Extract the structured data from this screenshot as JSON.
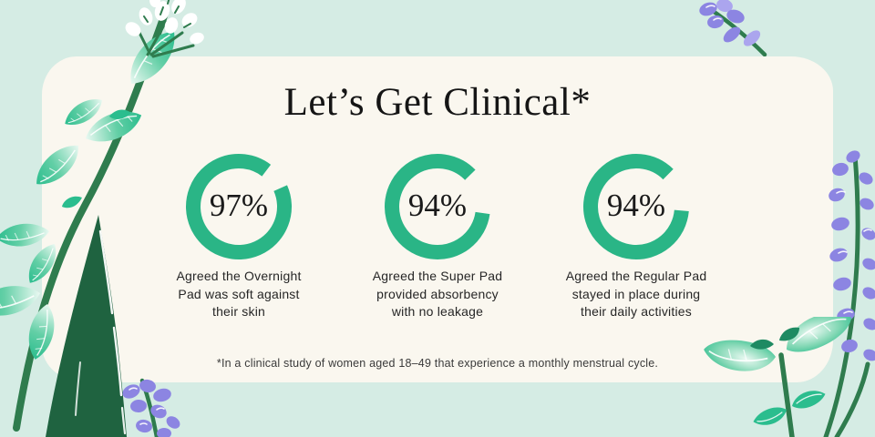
{
  "page": {
    "background_color": "#D5ECE4",
    "card_color": "#FAF7EF"
  },
  "card": {
    "title": "Let’s Get Clinical*",
    "stats": [
      {
        "value": "97%",
        "percent": 97,
        "caption": "Agreed the Overnight\nPad was soft against\ntheir skin",
        "ring": {
          "dash": 92,
          "rotation": -24
        }
      },
      {
        "value": "94%",
        "percent": 94,
        "caption": "Agreed the Super Pad\nprovided absorbency\nwith no leakage",
        "ring": {
          "dash": 85.5,
          "rotation": 8
        }
      },
      {
        "value": "94%",
        "percent": 94,
        "caption": "Agreed the Regular Pad\nstayed in place during\ntheir daily activities",
        "ring": {
          "dash": 86,
          "rotation": 5
        }
      }
    ],
    "footnote": "*In a clinical study of women aged 18–49 that experience a monthly menstrual cycle."
  },
  "chart_data": {
    "type": "pie",
    "variant": "donut-rings",
    "title": "Let’s Get Clinical*",
    "unit": "%",
    "values": [
      97,
      94,
      94
    ],
    "labels": [
      "Agreed the Overnight Pad was soft against their skin",
      "Agreed the Super Pad provided absorbency with no leakage",
      "Agreed the Regular Pad stayed in place during their daily activities"
    ],
    "footnote": "*In a clinical study of women aged 18–49 that experience a monthly menstrual cycle.",
    "legend": "none",
    "ring_color": "#2AB586",
    "value_label_position": "center"
  },
  "colors": {
    "ring": "#2AB586",
    "title_text": "#151515",
    "caption_text": "#262626",
    "background": "#D5ECE4",
    "card": "#FAF7EF",
    "leaf_teal": "#2CBD8E",
    "leaf_pale": "#EAF9F2",
    "stem_green": "#2F7C4E",
    "aloe_dark_green": "#1F6340",
    "lavender_purple": "#8C85E2",
    "lavender_light": "#ABA5EE",
    "blossom_white": "#FFFFFF"
  },
  "decorations": {
    "top_left": "white-blossom-on-mint-stem",
    "left": "mint-leaf-stem",
    "bottom_left": [
      "aloe-leaf",
      "lavender-sprig"
    ],
    "top_right": "lavender-sprig",
    "right": "lavender-stalk",
    "bottom_right": "mint-leaf-plant"
  }
}
